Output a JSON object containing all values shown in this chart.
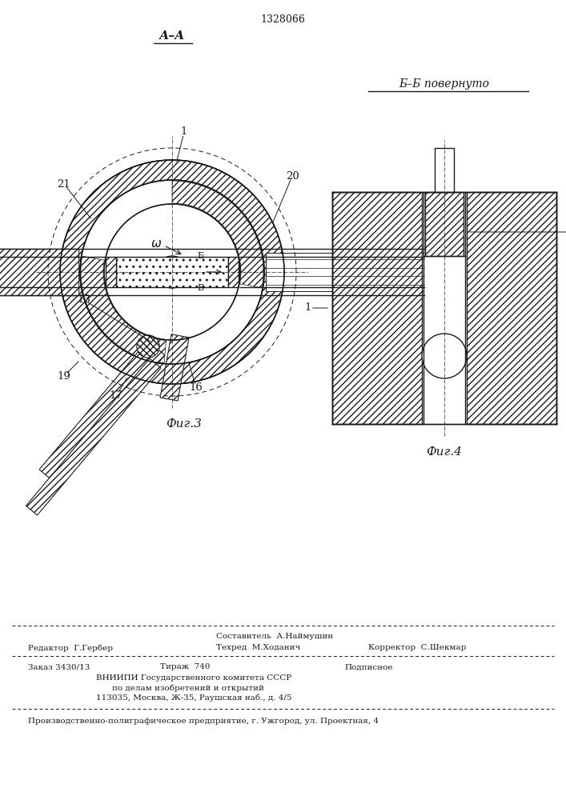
{
  "patent_number": "1328066",
  "bg": "#ffffff",
  "lc": "#1a1a1a",
  "section_aa": "А–А",
  "section_bb": "Б–Б повернуто",
  "fig3_caption": "Фиг.3",
  "fig4_caption": "Фиг.4",
  "footer_editor": "Редактор  Г.Гербер",
  "footer_comp": "Составитель  А.Наймушин",
  "footer_tech": "Техред  М.Ходанич",
  "footer_corr": "Корректор  С.Шекмар",
  "footer_order": "Заказ 3430/13",
  "footer_tirazh": "Тираж  740",
  "footer_podp": "Подписное",
  "footer_vniip1": "ВНИИПИ Государственного комитета СССР",
  "footer_vniip2": "по делам изобретений и открытий",
  "footer_vniip3": "113035, Москва, Ж-35, Раушская наб., д. 4/5",
  "footer_prod": "Производственно-полиграфическое предприятие, г. Ужгород, ул. Проектная, 4"
}
